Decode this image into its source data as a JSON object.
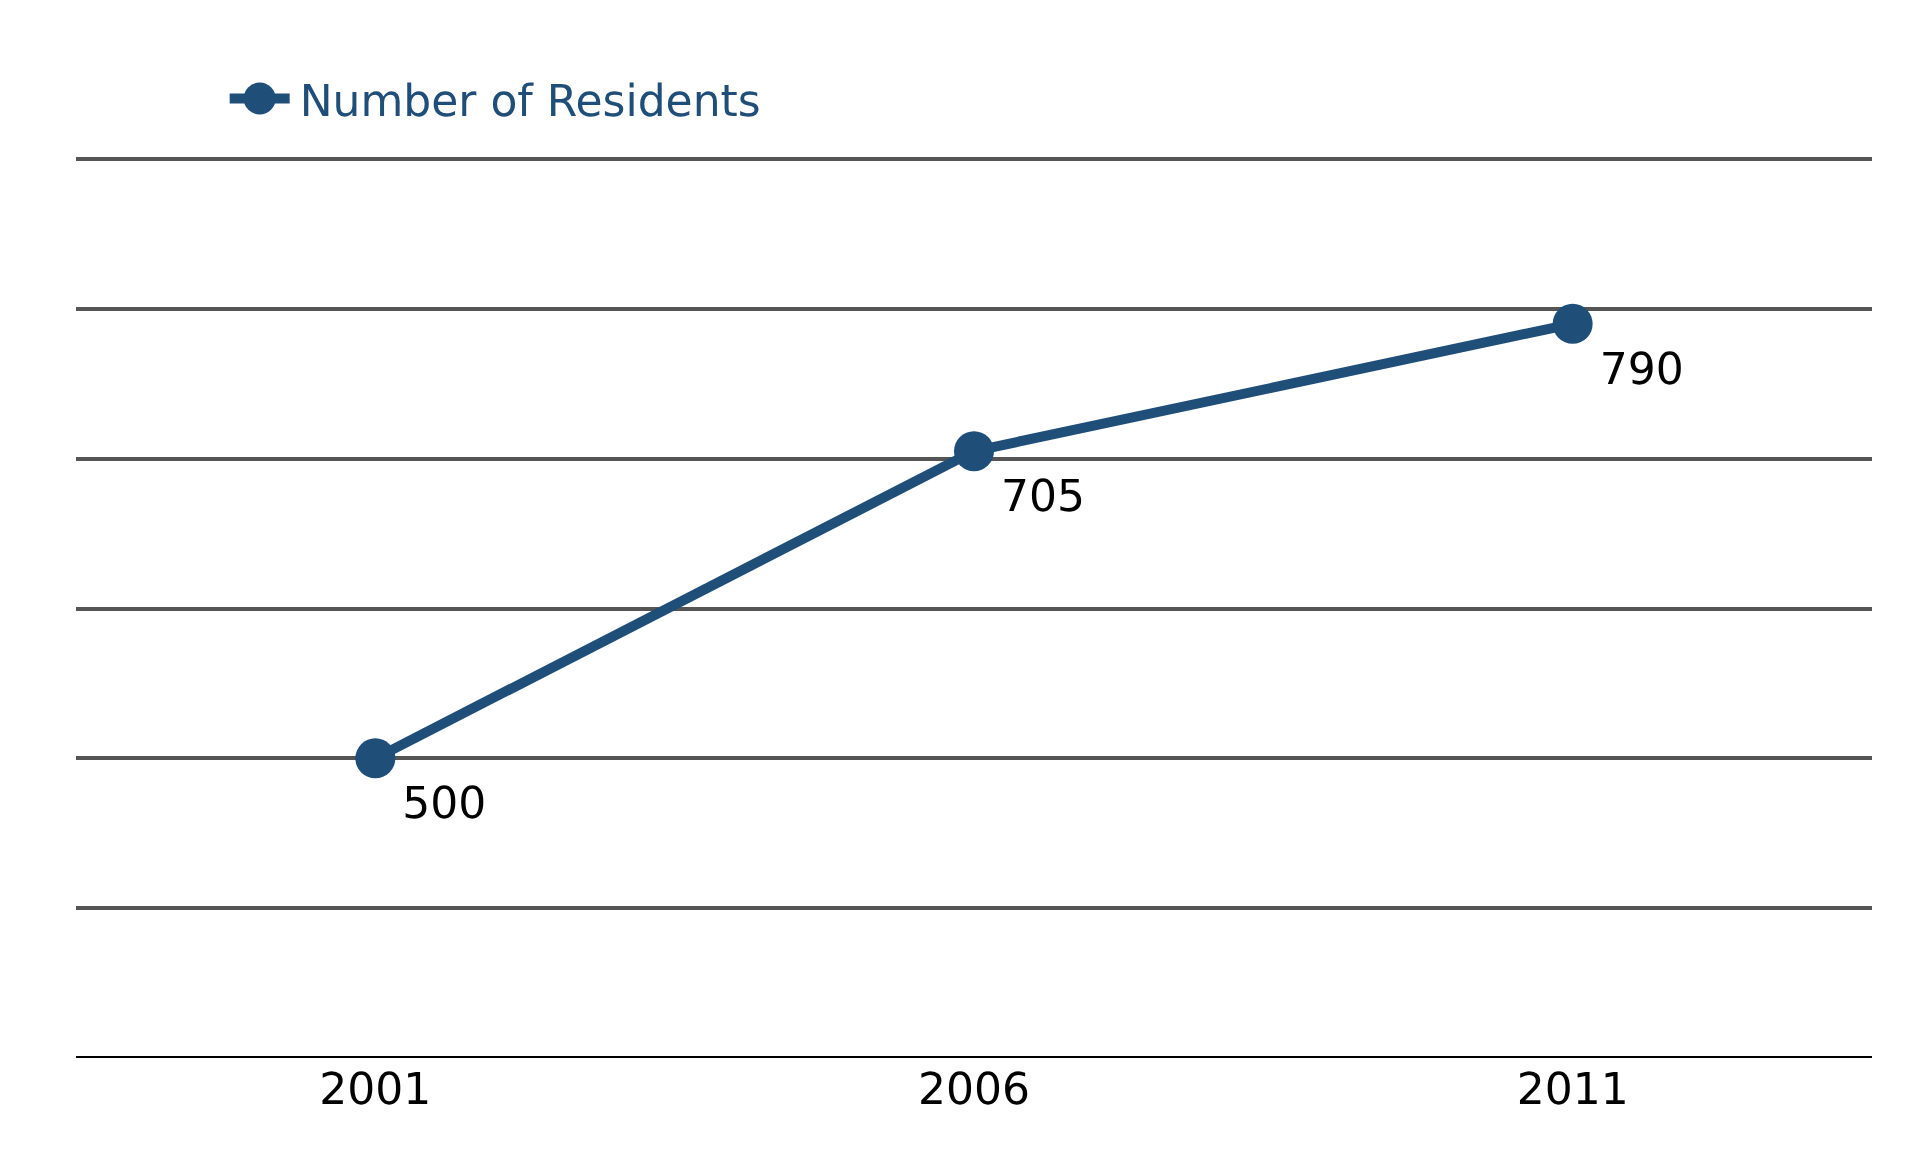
{
  "chart_data": {
    "type": "line",
    "categories": [
      "2001",
      "2006",
      "2011"
    ],
    "series": [
      {
        "name": "Number of Residents",
        "color": "#1f4e79",
        "values": [
          500,
          705,
          790
        ]
      }
    ],
    "ylim": [
      300,
      900
    ],
    "yticks": [
      {
        "value": 300,
        "label": null
      },
      {
        "value": 400,
        "label": null
      },
      {
        "value": 500,
        "label": null
      },
      {
        "value": 600,
        "label": null
      },
      {
        "value": 700,
        "label": null
      },
      {
        "value": 800,
        "label": null
      },
      {
        "value": 900,
        "label": null
      }
    ],
    "tick_labels": "x",
    "grid": "y",
    "legend": "top left",
    "marker": "circle",
    "line_style": "solid",
    "data_labels": true
  }
}
